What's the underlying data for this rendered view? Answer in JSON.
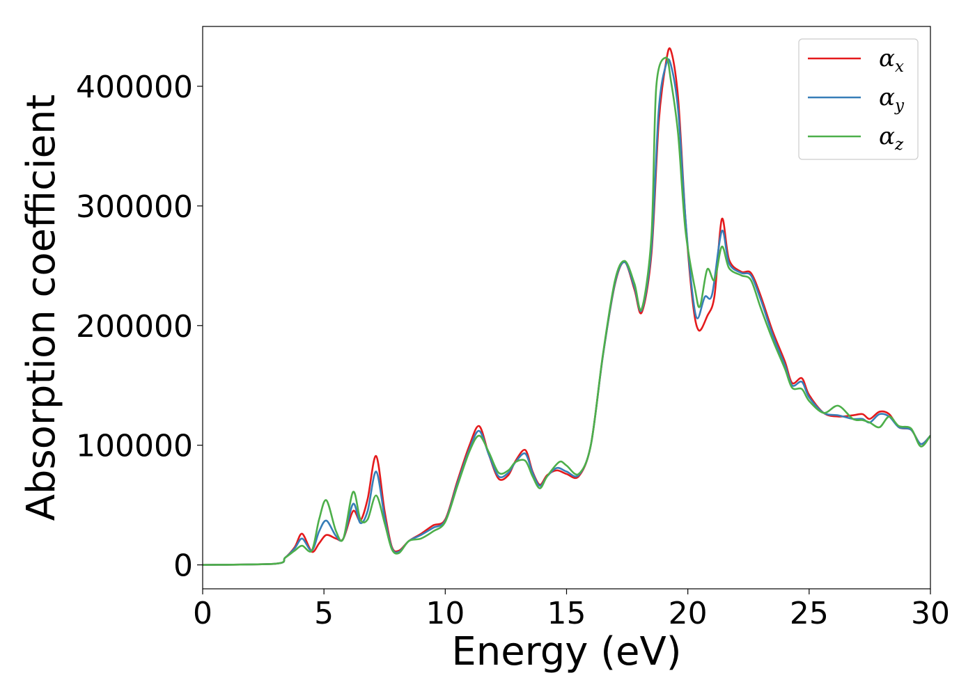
{
  "chart_data": {
    "type": "line",
    "xlabel": "Energy (eV)",
    "ylabel": "Absorption coefficient",
    "xlim": [
      0,
      30
    ],
    "ylim": [
      -20000,
      450000
    ],
    "x_ticks": [
      0,
      5,
      10,
      15,
      20,
      25,
      30
    ],
    "x_tick_labels": [
      "0",
      "5",
      "10",
      "15",
      "20",
      "25",
      "30"
    ],
    "y_ticks": [
      0,
      100000,
      200000,
      300000,
      400000
    ],
    "y_tick_labels": [
      "0",
      "100000",
      "200000",
      "300000",
      "400000"
    ],
    "grid": false,
    "legend_position": "top-right",
    "series": [
      {
        "name": "α_x",
        "symbol": "α",
        "subscript": "x",
        "color": "#e41a1c",
        "x": [
          0,
          3,
          3.4,
          3.8,
          4.1,
          4.5,
          4.8,
          5.1,
          5.5,
          5.8,
          6.2,
          6.5,
          6.8,
          7.15,
          7.5,
          7.8,
          8.1,
          8.5,
          9,
          9.5,
          10,
          10.5,
          11,
          11.4,
          11.8,
          12.2,
          12.6,
          12.9,
          13.3,
          13.6,
          13.9,
          14.2,
          14.6,
          15,
          15.5,
          16,
          16.5,
          17,
          17.4,
          17.8,
          18.1,
          18.5,
          18.8,
          19.1,
          19.3,
          19.6,
          19.9,
          20.2,
          20.45,
          20.8,
          21.1,
          21.4,
          21.7,
          22.2,
          22.6,
          23,
          23.5,
          24,
          24.3,
          24.7,
          25,
          25.6,
          26.2,
          26.8,
          27.2,
          27.5,
          27.9,
          28.3,
          28.7,
          29.2,
          29.6,
          30
        ],
        "values": [
          0,
          1000,
          6000,
          15000,
          26000,
          11000,
          18000,
          25000,
          22000,
          22000,
          45000,
          37000,
          55000,
          91000,
          45000,
          15000,
          12000,
          20000,
          26000,
          33000,
          38000,
          70000,
          100000,
          116000,
          92000,
          72000,
          75000,
          87000,
          96000,
          78000,
          67000,
          75000,
          79000,
          76000,
          74000,
          100000,
          175000,
          235000,
          253000,
          230000,
          211000,
          260000,
          370000,
          420000,
          430000,
          390000,
          290000,
          220000,
          196000,
          208000,
          225000,
          289000,
          255000,
          245000,
          244000,
          225000,
          195000,
          170000,
          152000,
          156000,
          142000,
          127000,
          124000,
          125000,
          126000,
          122000,
          128000,
          126000,
          115000,
          113000,
          101000,
          108000
        ]
      },
      {
        "name": "α_y",
        "symbol": "α",
        "subscript": "y",
        "color": "#377eb8",
        "x": [
          0,
          3,
          3.4,
          3.8,
          4.1,
          4.5,
          4.8,
          5.1,
          5.5,
          5.8,
          6.2,
          6.5,
          6.8,
          7.15,
          7.5,
          7.8,
          8.1,
          8.5,
          9,
          9.5,
          10,
          10.5,
          11,
          11.4,
          11.8,
          12.2,
          12.6,
          12.9,
          13.3,
          13.6,
          13.9,
          14.2,
          14.6,
          15,
          15.5,
          16,
          16.5,
          17,
          17.4,
          17.8,
          18.1,
          18.5,
          18.8,
          19.1,
          19.3,
          19.6,
          19.9,
          20.2,
          20.4,
          20.7,
          21.0,
          21.4,
          21.7,
          22.2,
          22.6,
          23,
          23.5,
          24,
          24.3,
          24.7,
          25,
          25.6,
          26.2,
          26.8,
          27.2,
          27.5,
          27.9,
          28.3,
          28.7,
          29.2,
          29.6,
          30
        ],
        "values": [
          0,
          1000,
          6000,
          14000,
          22000,
          12000,
          28000,
          37000,
          24000,
          22000,
          51000,
          35000,
          45000,
          78000,
          40000,
          14000,
          11000,
          20000,
          25000,
          31000,
          37000,
          68000,
          97000,
          112000,
          92000,
          74000,
          77000,
          86000,
          93000,
          77000,
          66000,
          74000,
          81000,
          78000,
          75000,
          100000,
          175000,
          236000,
          253000,
          232000,
          213000,
          265000,
          380000,
          418000,
          418000,
          380000,
          290000,
          225000,
          206000,
          224000,
          226000,
          279000,
          252000,
          244000,
          242000,
          222000,
          192000,
          167000,
          150000,
          153000,
          140000,
          127000,
          125000,
          122000,
          122000,
          119000,
          126000,
          124000,
          115000,
          113000,
          101000,
          108000
        ]
      },
      {
        "name": "α_z",
        "symbol": "α",
        "subscript": "z",
        "color": "#4daf4a",
        "x": [
          0,
          3,
          3.4,
          3.8,
          4.1,
          4.5,
          4.8,
          5.1,
          5.5,
          5.8,
          6.2,
          6.5,
          6.8,
          7.15,
          7.5,
          7.8,
          8.1,
          8.5,
          9,
          9.5,
          10,
          10.5,
          11,
          11.4,
          11.8,
          12.2,
          12.6,
          12.9,
          13.3,
          13.6,
          13.9,
          14.2,
          14.7,
          15,
          15.5,
          16,
          16.5,
          17,
          17.4,
          17.8,
          18.1,
          18.5,
          18.7,
          19.1,
          19.3,
          19.6,
          19.9,
          20.3,
          20.5,
          20.8,
          21.1,
          21.4,
          21.7,
          22.2,
          22.6,
          23,
          23.5,
          24,
          24.3,
          24.7,
          25,
          25.6,
          26.2,
          26.8,
          27.2,
          27.5,
          27.9,
          28.3,
          28.7,
          29.2,
          29.6,
          30
        ],
        "values": [
          0,
          1000,
          6000,
          12000,
          16000,
          12000,
          38000,
          54000,
          28000,
          22000,
          61000,
          38000,
          38000,
          58000,
          35000,
          13000,
          10000,
          20000,
          22000,
          28000,
          36000,
          66000,
          95000,
          108000,
          94000,
          77000,
          79000,
          86000,
          87000,
          74000,
          64000,
          74000,
          86000,
          83000,
          76000,
          100000,
          176000,
          238000,
          254000,
          235000,
          214000,
          275000,
          400000,
          424000,
          405000,
          360000,
          280000,
          230000,
          216000,
          247000,
          238000,
          266000,
          248000,
          242000,
          238000,
          215000,
          188000,
          164000,
          148000,
          147000,
          137000,
          127000,
          133000,
          122000,
          121000,
          119000,
          115000,
          124000,
          116000,
          114000,
          99000,
          108000
        ]
      }
    ]
  }
}
